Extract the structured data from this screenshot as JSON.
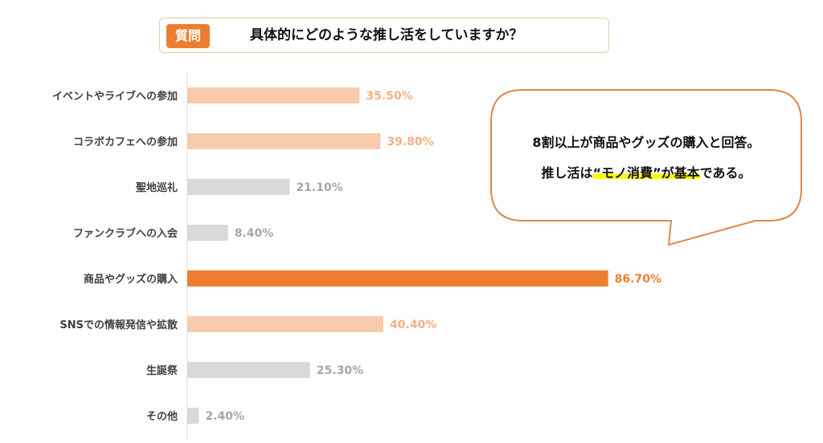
{
  "question": {
    "badge": "質問",
    "text": "具体的にどのような推し活をしていますか？"
  },
  "callout": {
    "line1": "8割以上が商品やグッズの購入と回答。",
    "line2_pre": "推し活は",
    "line2_highlight": "“モノ消費”が基本",
    "line2_post": "である。"
  },
  "colors": {
    "light": "#f8cbad",
    "gray": "#d9d9d9",
    "accent": "#ed7d31",
    "light_label": "#f4b183",
    "gray_label": "#a6a6a6"
  },
  "chart_data": {
    "type": "bar",
    "orientation": "horizontal",
    "title": "具体的にどのような推し活をしていますか？",
    "categories": [
      "イベントやライブへの参加",
      "コラボカフェへの参加",
      "聖地巡礼",
      "ファンクラブへの入会",
      "商品やグッズの購入",
      "SNSでの情報発信や拡散",
      "生誕祭",
      "その他"
    ],
    "values": [
      35.5,
      39.8,
      21.1,
      8.4,
      86.7,
      40.4,
      25.3,
      2.4
    ],
    "labels": [
      "35.50%",
      "39.80%",
      "21.10%",
      "8.40%",
      "86.70%",
      "40.40%",
      "25.30%",
      "2.40%"
    ],
    "color_groups": [
      "light",
      "light",
      "gray",
      "gray",
      "accent",
      "light",
      "gray",
      "gray"
    ],
    "unit": "%",
    "xlim": [
      0,
      100
    ],
    "grid": false
  }
}
